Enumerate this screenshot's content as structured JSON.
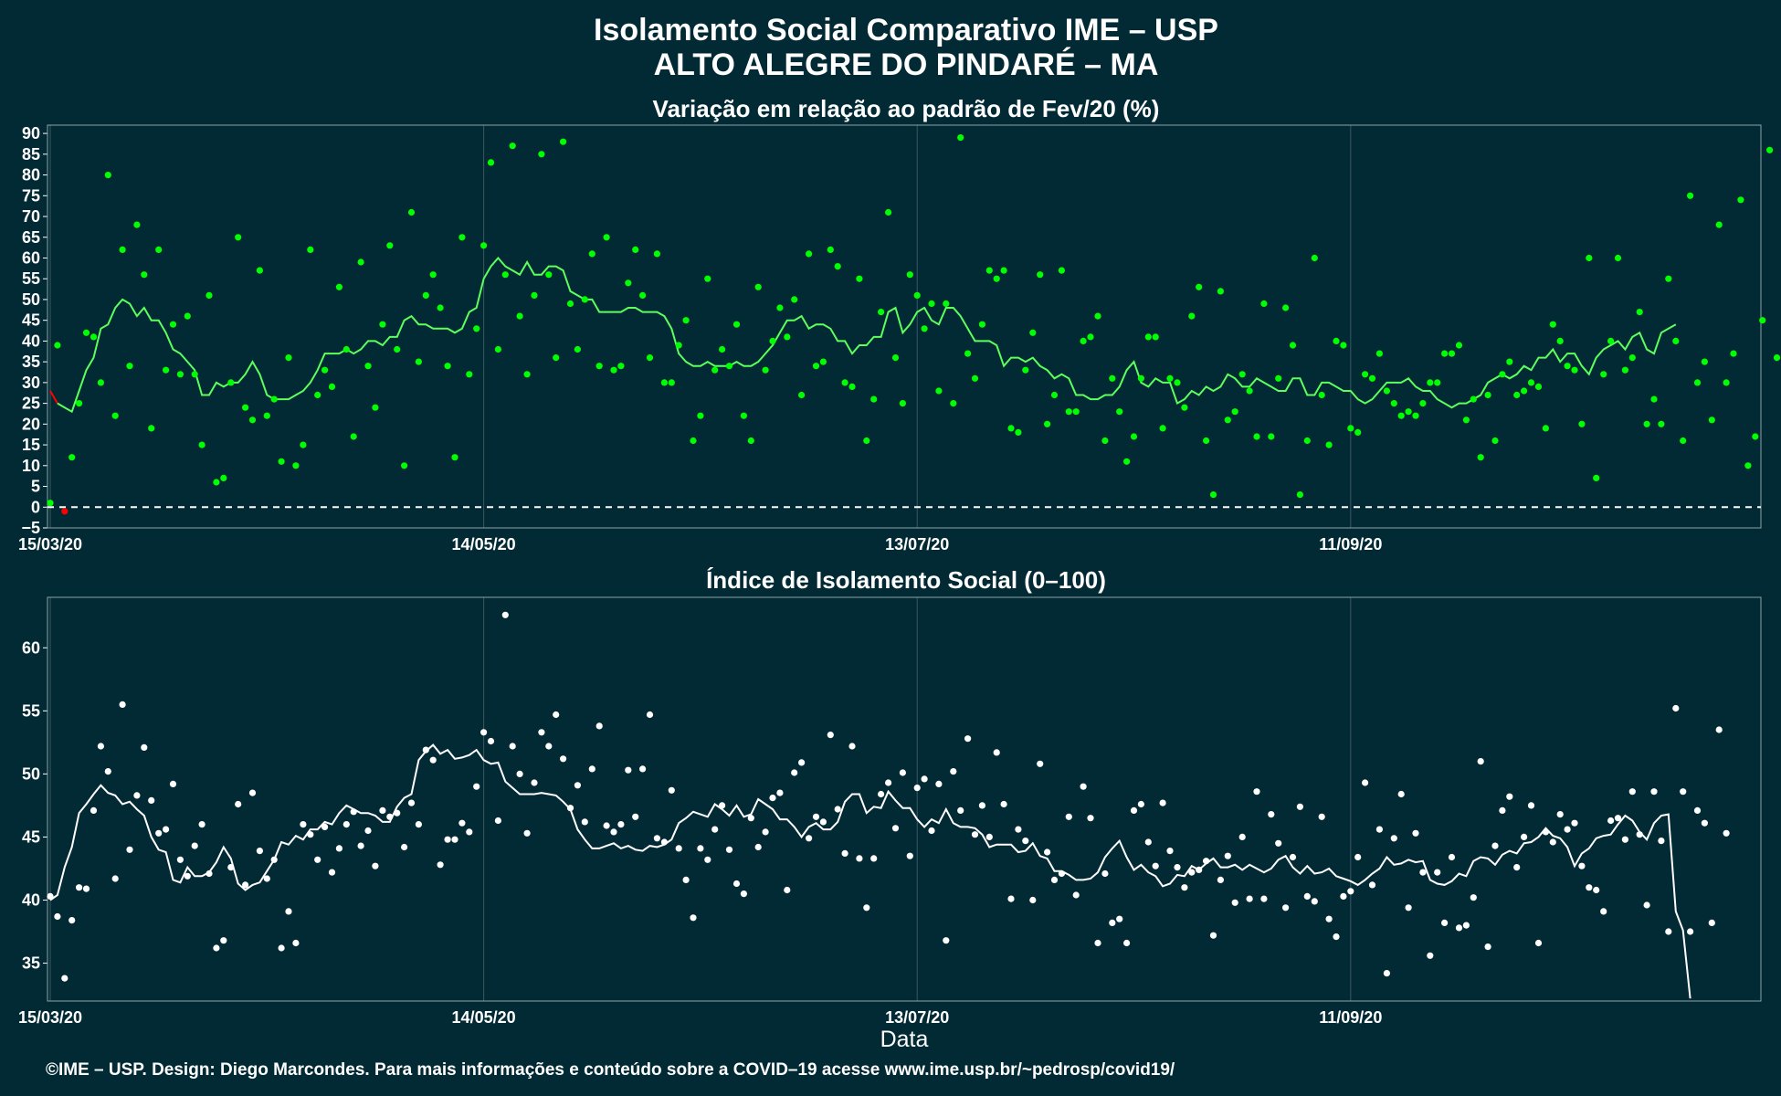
{
  "figure": {
    "title_line1": "Isolamento Social Comparativo IME – USP",
    "title_line2": "ALTO ALEGRE DO PINDARÉ – MA",
    "xlabel": "Data",
    "caption": "©IME – USP. Design: Diego Marcondes. Para mais informações e conteúdo sobre a COVID–19 acesse www.ime.usp.br/~pedrosp/covid19/",
    "background": "#022a35",
    "grid_color": "#3a5860"
  },
  "chart_data": [
    {
      "type": "scatter",
      "title": "Variação em relação ao padrão de Fev/20 (%)",
      "x_start": "15/03/20",
      "x_tick_labels": [
        "15/03/20",
        "14/05/20",
        "13/07/20",
        "11/09/20"
      ],
      "x_tick_days": [
        0,
        60,
        120,
        180
      ],
      "ylim": [
        -5,
        92
      ],
      "y_ticks": [
        -5,
        0,
        5,
        10,
        15,
        20,
        25,
        30,
        35,
        40,
        45,
        50,
        55,
        60,
        65,
        70,
        75,
        80,
        85,
        90
      ],
      "reference_line": 0,
      "point_color": "#00ff00",
      "negative_color": "#ff0000",
      "line_color": "#5cff5c",
      "grid": true,
      "values": [
        1,
        39,
        -1,
        12,
        25,
        42,
        41,
        30,
        80,
        22,
        62,
        34,
        68,
        56,
        19,
        62,
        33,
        44,
        32,
        46,
        32,
        15,
        51,
        6,
        7,
        30,
        65,
        24,
        21,
        57,
        22,
        26,
        11,
        36,
        10,
        15,
        62,
        27,
        33,
        29,
        53,
        38,
        17,
        59,
        34,
        24,
        44,
        63,
        38,
        10,
        71,
        35,
        51,
        56,
        48,
        34,
        12,
        65,
        32,
        43,
        63,
        83,
        38,
        56,
        87,
        46,
        32,
        51,
        85,
        56,
        36,
        88,
        49,
        38,
        50,
        61,
        34,
        65,
        33,
        34,
        54,
        62,
        51,
        36,
        61,
        30,
        30,
        39,
        45,
        16,
        22,
        55,
        33,
        38,
        34,
        44,
        22,
        16,
        53,
        33,
        40,
        48,
        41,
        50,
        27,
        61,
        34,
        35,
        62,
        58,
        30,
        29,
        55,
        16,
        26,
        47,
        71,
        36,
        25,
        56,
        51,
        43,
        49,
        28,
        49,
        25,
        89,
        37,
        31,
        44,
        57,
        55,
        57,
        19,
        18,
        33,
        42,
        56,
        20,
        27,
        57,
        23,
        23,
        40,
        41,
        46,
        16,
        31,
        23,
        11,
        17,
        31,
        41,
        41,
        19,
        31,
        30,
        24,
        46,
        53,
        16,
        3,
        52,
        21,
        23,
        32,
        28,
        17,
        49,
        17,
        31,
        48,
        39,
        3,
        16,
        60,
        27,
        15,
        40,
        39,
        19,
        18,
        32,
        31,
        37,
        28,
        25,
        22,
        23,
        22,
        25,
        30,
        30,
        37,
        37,
        39,
        21,
        26,
        12,
        27,
        16,
        32,
        35,
        27,
        28,
        30,
        29,
        19,
        44,
        40,
        34,
        33,
        20,
        60,
        7,
        32,
        40,
        60,
        33,
        36,
        47,
        20,
        26,
        20,
        55,
        40,
        16,
        75,
        30,
        35,
        21,
        68,
        30,
        37,
        74,
        10,
        17,
        45,
        86,
        36
      ],
      "moving_average": [
        28,
        25,
        24,
        23,
        28,
        33,
        36,
        43,
        44,
        48,
        50,
        49,
        46,
        48,
        45,
        45,
        42,
        38,
        37,
        35,
        33,
        27,
        27,
        30,
        29,
        30,
        30,
        32,
        35,
        32,
        27,
        26,
        26,
        26,
        27,
        28,
        30,
        33,
        37,
        37,
        37,
        38,
        37,
        38,
        40,
        40,
        39,
        41,
        41,
        45,
        46,
        44,
        44,
        43,
        43,
        43,
        42,
        43,
        47,
        48,
        55,
        58,
        60,
        58,
        57,
        56,
        59,
        56,
        56,
        58,
        58,
        57,
        52,
        51,
        50,
        50,
        47,
        47,
        47,
        47,
        48,
        48,
        47,
        47,
        47,
        46,
        43,
        37,
        35,
        34,
        34,
        35,
        34,
        34,
        34,
        35,
        34,
        34,
        35,
        37,
        39,
        42,
        45,
        45,
        46,
        43,
        44,
        44,
        43,
        40,
        40,
        37,
        39,
        39,
        41,
        41,
        47,
        48,
        42,
        44,
        47,
        48,
        45,
        44,
        48,
        48,
        46,
        43,
        40,
        40,
        40,
        39,
        34,
        36,
        36,
        35,
        36,
        34,
        33,
        31,
        32,
        31,
        27,
        27,
        26,
        26,
        27,
        27,
        29,
        33,
        35,
        30,
        29,
        31,
        30,
        30,
        25,
        26,
        28,
        27,
        29,
        28,
        29,
        32,
        31,
        29,
        29,
        31,
        30,
        29,
        28,
        28,
        31,
        31,
        27,
        27,
        30,
        30,
        29,
        28,
        28,
        26,
        25,
        26,
        28,
        30,
        30,
        30,
        31,
        29,
        28,
        28,
        26,
        25,
        24,
        25,
        25,
        26,
        27,
        30,
        31,
        32,
        31,
        32,
        34,
        33,
        36,
        36,
        38,
        35,
        37,
        37,
        34,
        32,
        36,
        38,
        39,
        40,
        38,
        41,
        42,
        38,
        37,
        42,
        43,
        44
      ]
    },
    {
      "type": "scatter",
      "title": "Índice de Isolamento Social (0–100)",
      "x_start": "15/03/20",
      "x_tick_labels": [
        "15/03/20",
        "14/05/20",
        "13/07/20",
        "11/09/20"
      ],
      "x_tick_days": [
        0,
        60,
        120,
        180
      ],
      "ylim": [
        32,
        64
      ],
      "y_ticks": [
        35,
        40,
        45,
        50,
        55,
        60
      ],
      "point_color": "#ffffff",
      "line_color": "#ffffff",
      "grid": true,
      "values": [
        40.3,
        38.7,
        33.8,
        38.4,
        41,
        40.9,
        47.1,
        52.2,
        50.2,
        41.7,
        55.5,
        44,
        48.3,
        52.1,
        47.9,
        45.3,
        45.6,
        49.2,
        43.2,
        41.9,
        44.3,
        46,
        42.1,
        36.2,
        36.8,
        42.6,
        47.6,
        41.2,
        48.5,
        43.9,
        41.7,
        43.2,
        36.2,
        39.1,
        36.6,
        46,
        45.2,
        43.2,
        45.8,
        42.2,
        44.1,
        46,
        47,
        44.3,
        45.5,
        42.7,
        47.1,
        46.6,
        46.9,
        44.2,
        47.7,
        46,
        51.9,
        51.1,
        42.8,
        44.8,
        44.8,
        46.1,
        45.4,
        49,
        53.3,
        52.6,
        46.3,
        62.6,
        52.2,
        50,
        45.3,
        49.3,
        53.3,
        52.2,
        54.7,
        51.2,
        47.3,
        49.1,
        46.2,
        50.4,
        53.8,
        45.9,
        45.4,
        46,
        50.3,
        46.6,
        50.4,
        54.7,
        44.9,
        44.6,
        48.7,
        44.1,
        41.6,
        38.6,
        44.1,
        43.2,
        45.6,
        47.5,
        44,
        41.3,
        40.5,
        46.5,
        44.2,
        45.4,
        48.1,
        48.5,
        40.8,
        50.1,
        50.9,
        44.9,
        46.6,
        46.2,
        53.1,
        47.2,
        43.7,
        52.2,
        43.3,
        39.4,
        43.3,
        48.4,
        49.3,
        45.7,
        50.1,
        43.5,
        48.9,
        49.6,
        45.5,
        49.2,
        36.8,
        50.2,
        47.1,
        52.8,
        45.2,
        47.5,
        45,
        51.7,
        47.6,
        40.1,
        45.6,
        44.7,
        40,
        50.8,
        43.8,
        41.6,
        42.1,
        46.6,
        40.4,
        49,
        46.5,
        36.6,
        42.1,
        38.2,
        38.5,
        36.6,
        47.1,
        47.6,
        44.6,
        42.7,
        47.7,
        43.9,
        42.6,
        41,
        42.2,
        42.4,
        43.1,
        37.2,
        41.6,
        43.5,
        39.8,
        45,
        40.1,
        48.6,
        40.1,
        46.8,
        44.5,
        39.4,
        43.4,
        47.4,
        40.3,
        39.9,
        46.6,
        38.5,
        37.1,
        40.3,
        40.7,
        43.4,
        49.3,
        41.2,
        45.6,
        34.2,
        44.9,
        48.4,
        39.4,
        45.3,
        42.2,
        35.6,
        42.2,
        38.2,
        43.4,
        37.8,
        38,
        40.2,
        51,
        36.3,
        44.3,
        47.1,
        48.2,
        42.6,
        45,
        47.5,
        36.6,
        45.4,
        44.6,
        46.8,
        45.6,
        46.1,
        42.7,
        41,
        40.8,
        39.1,
        46.3,
        46.5,
        44.8,
        48.6,
        45.2,
        39.6,
        48.6,
        44.7,
        37.5,
        55.2,
        48.6,
        37.5,
        47.1,
        46.1,
        38.2,
        53.5,
        45.3
      ],
      "moving_average": [
        40,
        40.4,
        42.6,
        44.2,
        46.9,
        47.6,
        48.4,
        49.1,
        48.5,
        48.3,
        47.6,
        47.8,
        47.2,
        46.7,
        45,
        44,
        43.8,
        41.6,
        41.4,
        42.6,
        41.9,
        41.9,
        42.2,
        43,
        44.2,
        43.3,
        41.3,
        40.8,
        41.2,
        41.4,
        42.3,
        43.2,
        44.6,
        44.4,
        45.1,
        44.8,
        45.6,
        45.6,
        46.2,
        46,
        46.9,
        47.5,
        47.2,
        46.9,
        46.9,
        46.7,
        46.2,
        46.2,
        47.4,
        48.1,
        48.4,
        51.1,
        51.8,
        52.3,
        51.6,
        51.9,
        51.2,
        51.3,
        51.5,
        51.9,
        51.1,
        50.8,
        50.9,
        49.4,
        48.9,
        48.4,
        48.4,
        48.4,
        48.5,
        48.4,
        48.3,
        47.8,
        47.2,
        45.6,
        44.8,
        44.1,
        44.1,
        44.3,
        44.5,
        44.1,
        44.3,
        44,
        43.9,
        44.3,
        44.2,
        44.4,
        44.8,
        46.1,
        46.5,
        47,
        46.8,
        46.6,
        47.6,
        47.2,
        46.7,
        47.5,
        46.6,
        46.8,
        48,
        47.6,
        47.2,
        46.4,
        46.4,
        45.8,
        45,
        45.8,
        46.1,
        45.6,
        45.6,
        46.2,
        47.8,
        48.4,
        48.4,
        46.9,
        47.4,
        47.3,
        48.6,
        47.9,
        47.3,
        47.3,
        46.4,
        45.8,
        46.4,
        46.1,
        47.2,
        46.1,
        45.8,
        45.8,
        45.7,
        45.2,
        44.2,
        44.4,
        44.4,
        44.4,
        43.8,
        43.9,
        44.5,
        43.5,
        43.3,
        42.3,
        42.3,
        42,
        41.6,
        41.6,
        41.7,
        42.2,
        43.4,
        44.1,
        44.7,
        43.4,
        42.4,
        42.8,
        42.2,
        41.9,
        41.1,
        41.3,
        42,
        41.9,
        42.7,
        42.4,
        42.9,
        43.3,
        42.6,
        42.6,
        42.8,
        42.4,
        42.8,
        42.5,
        42.2,
        42.5,
        43.2,
        43.5,
        42.6,
        42.1,
        42.7,
        42.1,
        42.2,
        42.5,
        41.9,
        41.7,
        41.5,
        41.2,
        41.6,
        42.1,
        42.5,
        43.4,
        42.8,
        42.9,
        43.2,
        43,
        43.1,
        41.6,
        41.3,
        41.2,
        41.5,
        42.1,
        41.9,
        43.1,
        43.4,
        43.3,
        42.8,
        43.6,
        43.9,
        43.7,
        44.5,
        44.6,
        45,
        45.7,
        45.1,
        44.9,
        44.2,
        42.7,
        43.7,
        44.1,
        44.9,
        45.1,
        45.2,
        46,
        46.7,
        46.3,
        45.4,
        44.8,
        46.1,
        46.7,
        46.8,
        39.1,
        37.6,
        32.2
      ]
    }
  ]
}
